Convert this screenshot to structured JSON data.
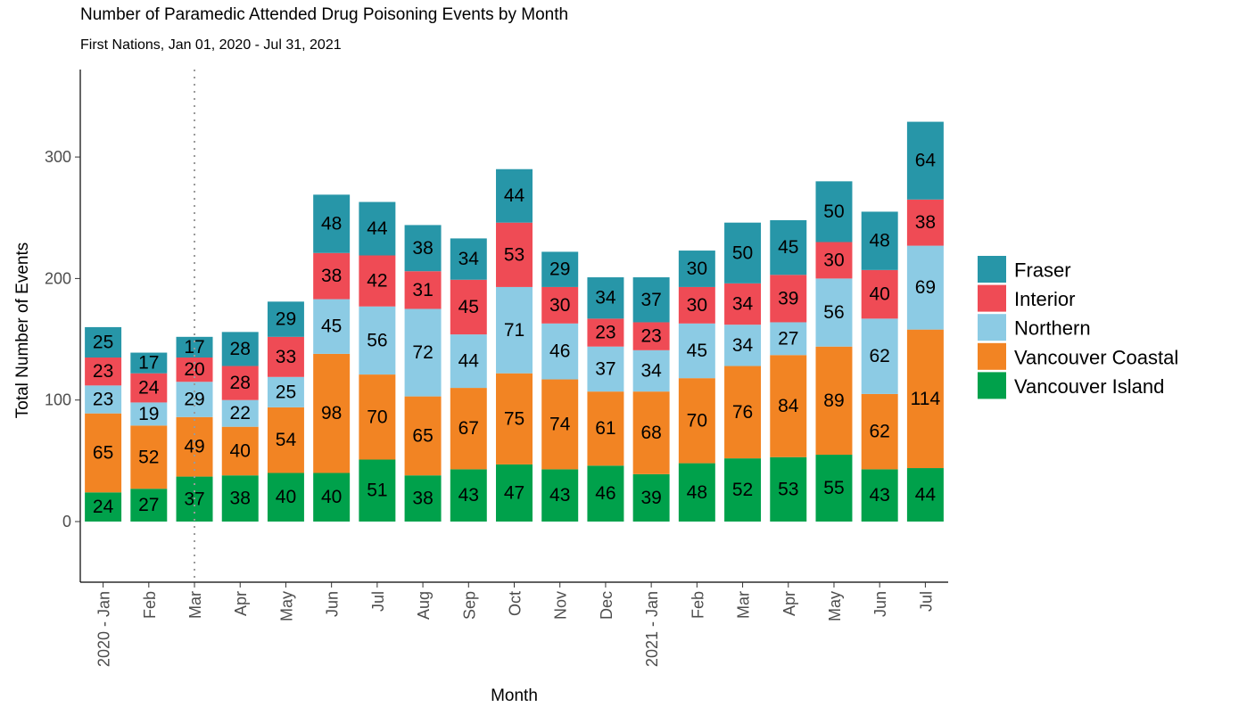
{
  "title": "Number of Paramedic Attended Drug Poisoning Events by Month",
  "subtitle": "First Nations, Jan 01, 2020 - Jul 31, 2021",
  "colors": {
    "Fraser": "#2796a8",
    "Interior": "#ef4b55",
    "Northern": "#8ccbe4",
    "Vancouver Coastal": "#f28423",
    "Vancouver Island": "#00a14b"
  },
  "chart_data": {
    "type": "bar",
    "stacked": true,
    "title": "Number of Paramedic Attended Drug Poisoning Events by Month",
    "subtitle": "First Nations, Jan 01, 2020 - Jul 31, 2021",
    "xlabel": "Month",
    "ylabel": "Total Number of Events",
    "ylim": [
      -50,
      385
    ],
    "yticks": [
      0,
      100,
      200,
      300
    ],
    "grid": false,
    "legend_position": "right",
    "reference_line": {
      "category": "Mar",
      "style": "dotted"
    },
    "categories": [
      "2020 - Jan",
      "Feb",
      "Mar",
      "Apr",
      "May",
      "Jun",
      "Jul",
      "Aug",
      "Sep",
      "Oct",
      "Nov",
      "Dec",
      "2021 - Jan",
      "Feb",
      "Mar",
      "Apr",
      "May",
      "Jun",
      "Jul"
    ],
    "series": [
      {
        "name": "Vancouver Island",
        "values": [
          24,
          27,
          37,
          38,
          40,
          40,
          51,
          38,
          43,
          47,
          43,
          46,
          39,
          48,
          52,
          53,
          55,
          43,
          44
        ]
      },
      {
        "name": "Vancouver Coastal",
        "values": [
          65,
          52,
          49,
          40,
          54,
          98,
          70,
          65,
          67,
          75,
          74,
          61,
          68,
          70,
          76,
          84,
          89,
          62,
          114
        ]
      },
      {
        "name": "Northern",
        "values": [
          23,
          19,
          29,
          22,
          25,
          45,
          56,
          72,
          44,
          71,
          46,
          37,
          34,
          45,
          34,
          27,
          56,
          62,
          69
        ]
      },
      {
        "name": "Interior",
        "values": [
          23,
          24,
          20,
          28,
          33,
          38,
          42,
          31,
          45,
          53,
          30,
          23,
          23,
          30,
          34,
          39,
          30,
          40,
          38
        ]
      },
      {
        "name": "Fraser",
        "values": [
          25,
          17,
          17,
          28,
          29,
          48,
          44,
          38,
          34,
          44,
          29,
          34,
          37,
          30,
          50,
          45,
          50,
          48,
          64
        ]
      }
    ],
    "legend": [
      "Fraser",
      "Interior",
      "Northern",
      "Vancouver Coastal",
      "Vancouver Island"
    ]
  }
}
